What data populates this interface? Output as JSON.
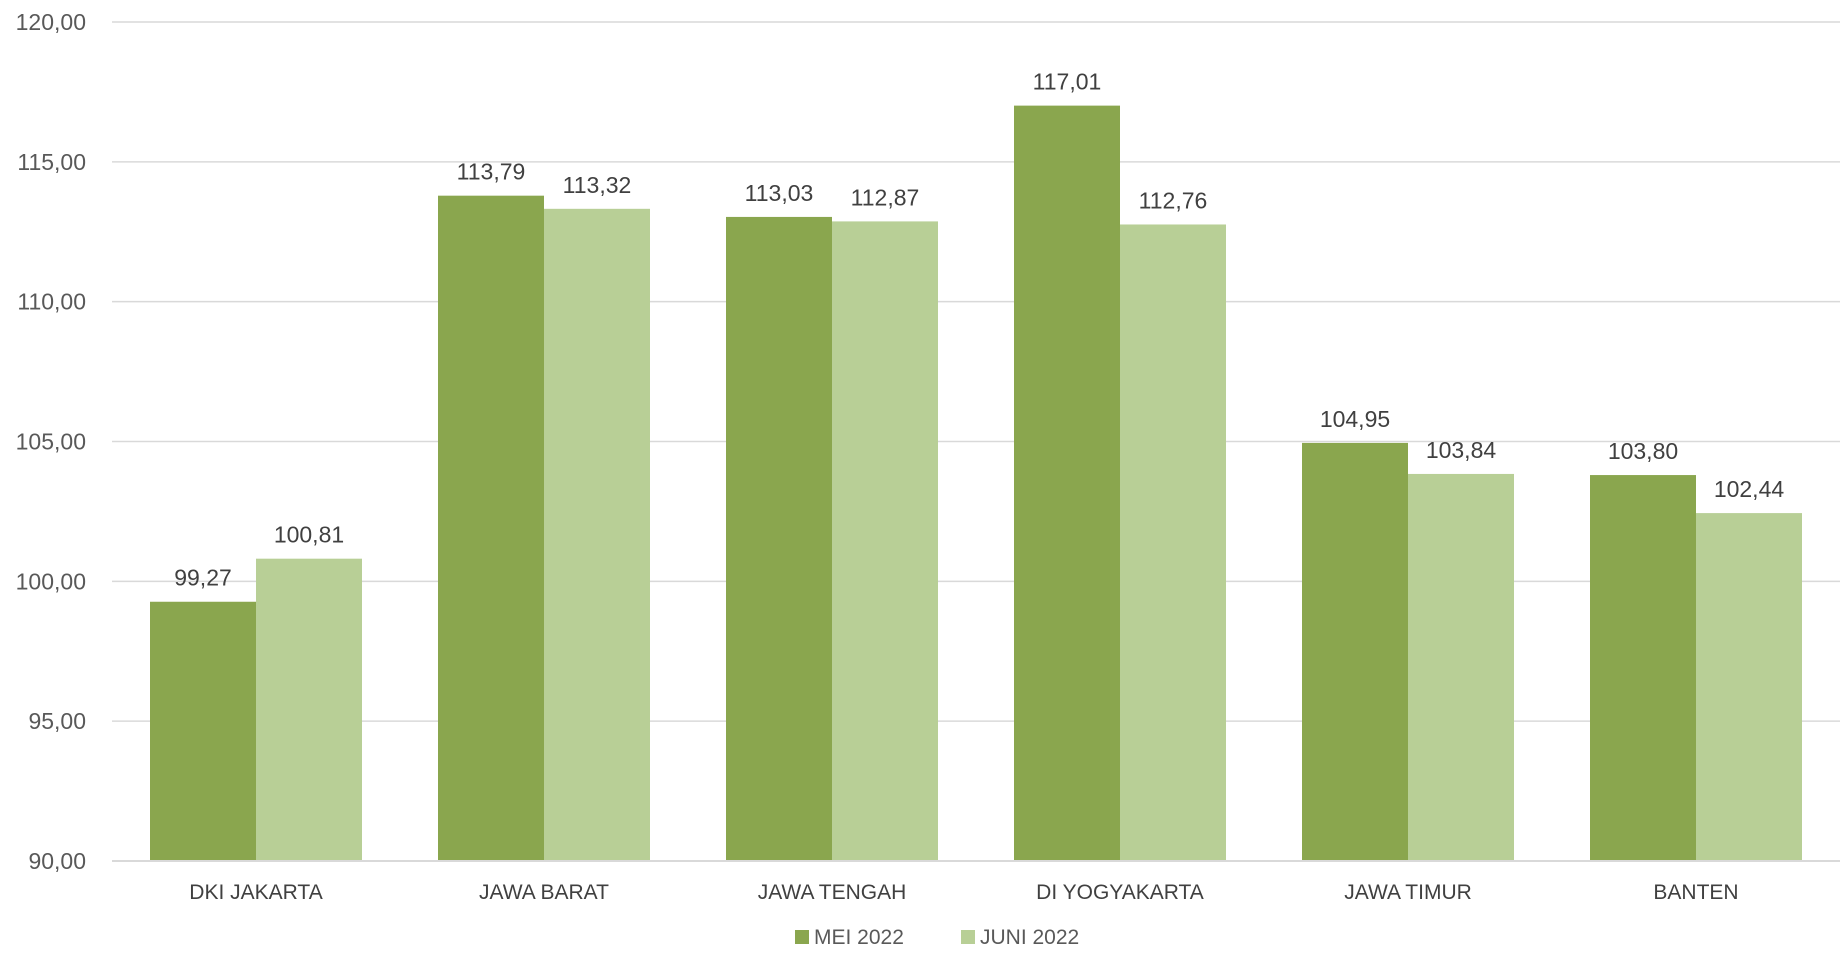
{
  "chart_data": {
    "type": "bar",
    "title": "",
    "xlabel": "",
    "ylabel": "",
    "categories": [
      "DKI JAKARTA",
      "JAWA BARAT",
      "JAWA TENGAH",
      "DI YOGYAKARTA",
      "JAWA TIMUR",
      "BANTEN"
    ],
    "series": [
      {
        "name": "MEI 2022",
        "color": "#8aa64e",
        "values": [
          99.27,
          113.79,
          113.03,
          117.01,
          104.95,
          103.8
        ],
        "labels": [
          "99,27",
          "113,79",
          "113,03",
          "117,01",
          "104,95",
          "103,80"
        ]
      },
      {
        "name": "JUNI 2022",
        "color": "#b8cf96",
        "values": [
          100.81,
          113.32,
          112.87,
          112.76,
          103.84,
          102.44
        ],
        "labels": [
          "100,81",
          "113,32",
          "112,87",
          "112,76",
          "103,84",
          "102,44"
        ]
      }
    ],
    "ylim": [
      90,
      120
    ],
    "y_ticks": [
      90,
      95,
      100,
      105,
      110,
      115,
      120
    ],
    "y_tick_labels": [
      "90,00",
      "95,00",
      "100,00",
      "105,00",
      "110,00",
      "115,00",
      "120,00"
    ],
    "grid": true,
    "gridline_color": "#d9d9d9",
    "legend": "bottom"
  }
}
